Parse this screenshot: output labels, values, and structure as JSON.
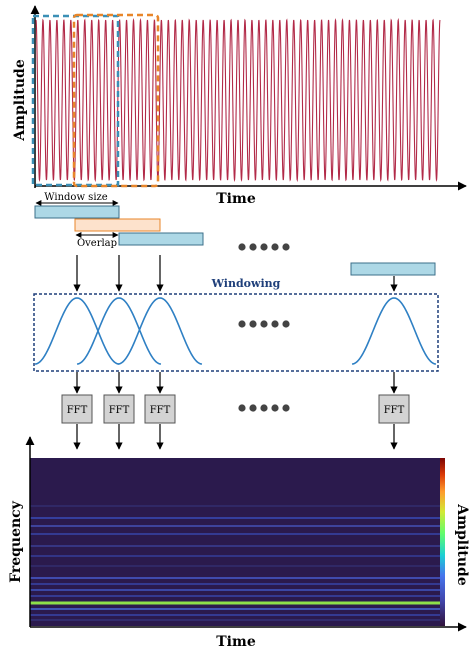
{
  "signal_panel": {
    "ylabel": "Amplitude",
    "xlabel": "Time",
    "cycles": 58
  },
  "windows": {
    "window_size_label": "Window size",
    "overlap_label": "Overlap",
    "windowing_label": "Windowing",
    "ellipsis_count": 5
  },
  "fft": {
    "label": "FFT",
    "count": 4
  },
  "spectrogram": {
    "ylabel": "Frequency",
    "xlabel": "Time",
    "colorbar_label": "Amplitude"
  },
  "colors": {
    "signal": "#b22a48",
    "window_box_1": "#3b8fb5",
    "window_box_2": "#e8862a",
    "window_fill": "#add8e6",
    "overlap_fill": "#fde2cc",
    "overlap_stroke": "#e8862a",
    "hann_curve": "#2f80c4",
    "windowing_border": "#1f3f7a",
    "fft_fill": "#d3d3d3",
    "spec_background": "#2b1a4d",
    "spec_band": "#3a4fc0",
    "spec_band_bright": "#8ee04a"
  }
}
